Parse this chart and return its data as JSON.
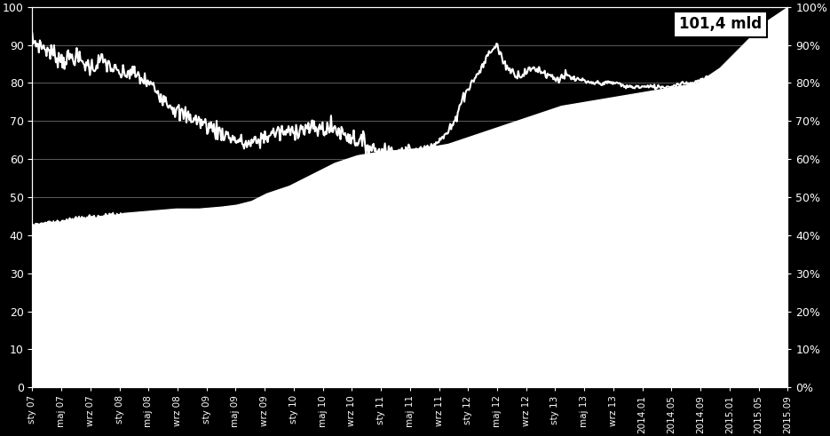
{
  "background_color": "#000000",
  "plot_bg_color": "#000000",
  "area_fill_color": "#ffffff",
  "line_color": "#ffffff",
  "text_color": "#ffffff",
  "grid_color": "#ffffff",
  "annotation_text": "101,4 mld",
  "annotation_box_facecolor": "#ffffff",
  "annotation_text_color": "#000000",
  "ylim": [
    0,
    100
  ],
  "yticks_left": [
    0,
    10,
    20,
    30,
    40,
    50,
    60,
    70,
    80,
    90,
    100
  ],
  "yticks_right_labels": [
    "0%",
    "10%",
    "20%",
    "30%",
    "40%",
    "50%",
    "60%",
    "70%",
    "80%",
    "90%",
    "100%"
  ],
  "x_labels": [
    "sty 07",
    "maj 07",
    "wrz 07",
    "sty 08",
    "maj 08",
    "wrz 08",
    "sty 09",
    "maj 09",
    "wrz 09",
    "sty 10",
    "maj 10",
    "wrz 10",
    "sty 11",
    "maj 11",
    "wrz 11",
    "sty 12",
    "maj 12",
    "wrz 12",
    "sty 13",
    "maj 13",
    "wrz 13",
    "2014.01",
    "2014.05",
    "2014.09",
    "2015.01",
    "2015.05",
    "2015.09"
  ],
  "area_ctrl_x": [
    0.0,
    0.02,
    0.04,
    0.06,
    0.08,
    0.1,
    0.13,
    0.16,
    0.19,
    0.22,
    0.25,
    0.27,
    0.29,
    0.31,
    0.34,
    0.37,
    0.4,
    0.43,
    0.46,
    0.49,
    0.52,
    0.55,
    0.58,
    0.61,
    0.64,
    0.67,
    0.7,
    0.73,
    0.76,
    0.79,
    0.82,
    0.85,
    0.88,
    0.91,
    0.94,
    0.97,
    1.0
  ],
  "area_ctrl_y": [
    43,
    43.5,
    44,
    44.5,
    45,
    45.5,
    46,
    46.5,
    47,
    47,
    47.5,
    48,
    49,
    51,
    53,
    56,
    59,
    61,
    62,
    62.5,
    63,
    64,
    66,
    68,
    70,
    72,
    74,
    75,
    76,
    77,
    78,
    79,
    80,
    84,
    90,
    96,
    100
  ],
  "line_ctrl_x": [
    0.0,
    0.01,
    0.025,
    0.04,
    0.055,
    0.07,
    0.08,
    0.09,
    0.1,
    0.11,
    0.12,
    0.13,
    0.145,
    0.16,
    0.175,
    0.185,
    0.195,
    0.21,
    0.22,
    0.23,
    0.24,
    0.25,
    0.26,
    0.27,
    0.28,
    0.29,
    0.3,
    0.31,
    0.32,
    0.33,
    0.34,
    0.35,
    0.36,
    0.37,
    0.38,
    0.39,
    0.4,
    0.41,
    0.42,
    0.43,
    0.44,
    0.45,
    0.46,
    0.47,
    0.48,
    0.49,
    0.5,
    0.51,
    0.52,
    0.53,
    0.54,
    0.55,
    0.56,
    0.565,
    0.575,
    0.585,
    0.595,
    0.605,
    0.615,
    0.625,
    0.635,
    0.645,
    0.655,
    0.665,
    0.675,
    0.685,
    0.695,
    0.705,
    0.715,
    0.725,
    0.735,
    0.745,
    0.755,
    0.765,
    0.775,
    0.785,
    0.8,
    0.815,
    0.83,
    0.845,
    0.86,
    0.875,
    0.89,
    0.905,
    0.92,
    0.935,
    0.95,
    0.965,
    0.98,
    1.0
  ],
  "line_ctrl_y": [
    91,
    90,
    88,
    86,
    87,
    85,
    84,
    86,
    85,
    83,
    82,
    83,
    81,
    79,
    76,
    74,
    72,
    71,
    70,
    69,
    68,
    67,
    66,
    65,
    64,
    64,
    65,
    66,
    67,
    67,
    67,
    68,
    68,
    68,
    68,
    68,
    68,
    67,
    66,
    65,
    64,
    63,
    62,
    62,
    62,
    62,
    62,
    62,
    63,
    64,
    65,
    67,
    70,
    74,
    78,
    81,
    84,
    88,
    90,
    85,
    83,
    82,
    83,
    84,
    83,
    82,
    81,
    82,
    81,
    81,
    80,
    80,
    80,
    80,
    80,
    79,
    79,
    79,
    79,
    79,
    80,
    80,
    81,
    82,
    83,
    84,
    86,
    89,
    93,
    100
  ]
}
